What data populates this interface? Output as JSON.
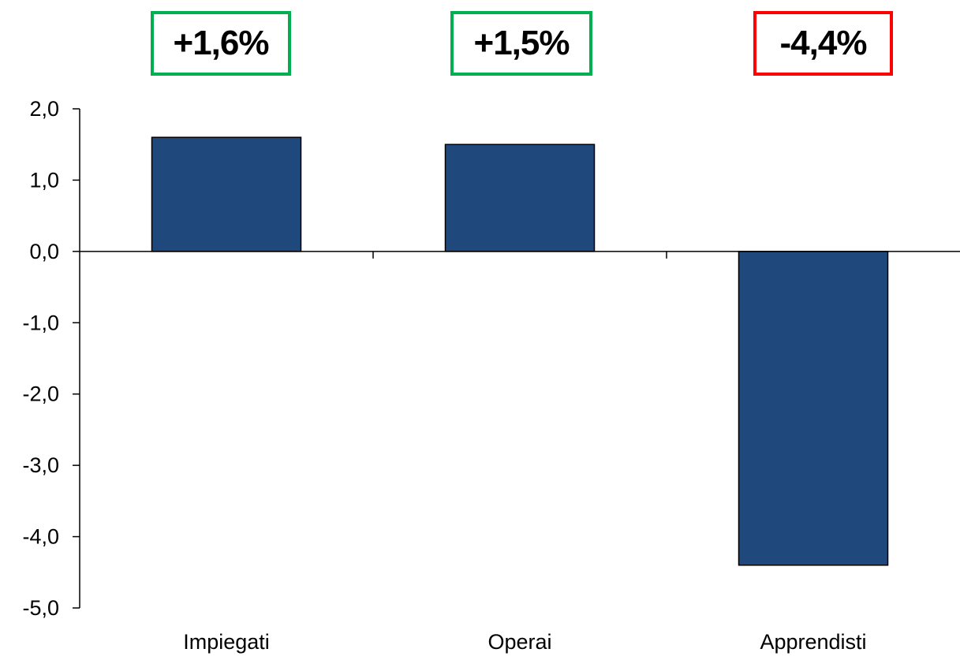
{
  "chart_data": {
    "type": "bar",
    "categories": [
      "Impiegati",
      "Operai",
      "Apprendisti"
    ],
    "values": [
      1.6,
      1.5,
      -4.4
    ],
    "ylim": [
      -5.0,
      2.0
    ],
    "yticks": [
      "2,0",
      "1,0",
      "0,0",
      "-1,0",
      "-2,0",
      "-3,0",
      "-4,0",
      "-5,0"
    ],
    "ytick_values": [
      2,
      1,
      0,
      -1,
      -2,
      -3,
      -4,
      -5
    ],
    "bar_color": "#1f497d",
    "annotations": [
      {
        "text": "+1,6%",
        "border_color": "#00b050"
      },
      {
        "text": "+1,5%",
        "border_color": "#00b050"
      },
      {
        "text": "-4,4%",
        "border_color": "#ff0000"
      }
    ],
    "grid": false
  }
}
